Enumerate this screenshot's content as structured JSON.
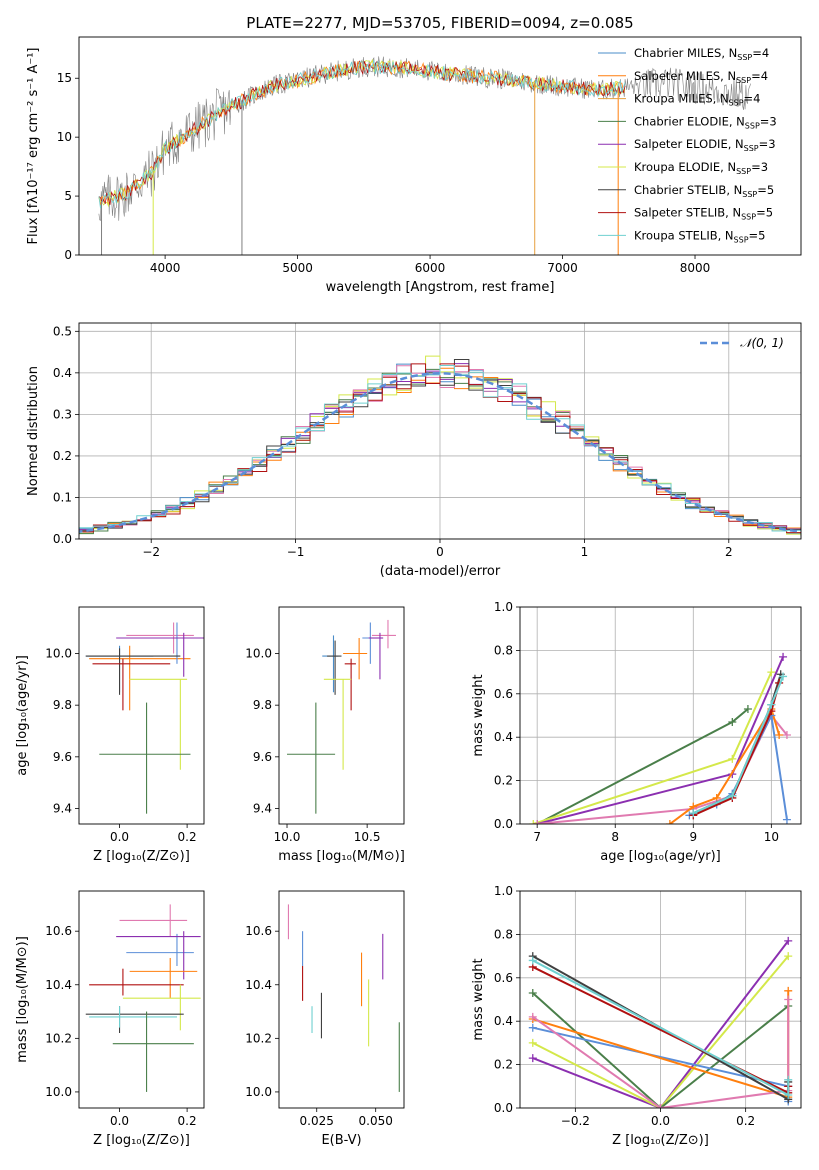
{
  "colors": {
    "chabrier_miles": "#4a8cc8",
    "salpeter_miles": "#ff7f0e",
    "kroupa_miles": "#e6a040",
    "chabrier_elodie": "#4a7f4a",
    "salpeter_elodie": "#8b2fb0",
    "kroupa_elodie": "#d4e84a",
    "chabrier_stelib": "#404040",
    "salpeter_stelib": "#b01010",
    "kroupa_stelib": "#6fd0d0",
    "pink": "#e07ab0",
    "blue2": "#5b8ed8",
    "grey_spec": "#808080",
    "gauss": "#5b8ed8"
  },
  "chart_data": [
    {
      "type": "line",
      "title": "PLATE=2277, MJD=53705, FIBERID=0094, z=0.085",
      "xlabel": "wavelength [Angstrom, rest frame]",
      "ylabel": "Flux [fλ10⁻¹⁷ erg cm⁻² s⁻¹ A⁻¹]",
      "xlim": [
        3350,
        8800
      ],
      "ylim": [
        0,
        18.5
      ],
      "xticks": [
        "4000",
        "5000",
        "6000",
        "7000",
        "8000"
      ],
      "yticks": [
        "0",
        "5",
        "10",
        "15"
      ],
      "legend_position": "top-right",
      "legend": [
        {
          "label": "Chabrier MILES, N",
          "sub": "SSP",
          "tail": "=4",
          "color": "chabrier_miles"
        },
        {
          "label": "Salpeter MILES, N",
          "sub": "SSP",
          "tail": "=4",
          "color": "salpeter_miles"
        },
        {
          "label": "Kroupa MILES, N",
          "sub": "SSP",
          "tail": "=4",
          "color": "kroupa_miles"
        },
        {
          "label": "Chabrier ELODIE, N",
          "sub": "SSP",
          "tail": "=3",
          "color": "chabrier_elodie"
        },
        {
          "label": "Salpeter ELODIE, N",
          "sub": "SSP",
          "tail": "=3",
          "color": "salpeter_elodie"
        },
        {
          "label": "Kroupa ELODIE, N",
          "sub": "SSP",
          "tail": "=3",
          "color": "kroupa_elodie"
        },
        {
          "label": "Chabrier STELIB, N",
          "sub": "SSP",
          "tail": "=5",
          "color": "chabrier_stelib"
        },
        {
          "label": "Salpeter STELIB, N",
          "sub": "SSP",
          "tail": "=5",
          "color": "salpeter_stelib"
        },
        {
          "label": "Kroupa STELIB, N",
          "sub": "SSP",
          "tail": "=5",
          "color": "kroupa_stelib"
        }
      ],
      "continuum": [
        [
          3500,
          4.5
        ],
        [
          3700,
          5.2
        ],
        [
          3900,
          7.0
        ],
        [
          4000,
          9.0
        ],
        [
          4200,
          10.5
        ],
        [
          4400,
          12.0
        ],
        [
          4600,
          13.2
        ],
        [
          4800,
          14.3
        ],
        [
          5000,
          14.8
        ],
        [
          5200,
          15.4
        ],
        [
          5500,
          16.0
        ],
        [
          5800,
          15.9
        ],
        [
          6000,
          15.6
        ],
        [
          6200,
          15.3
        ],
        [
          6500,
          15.0
        ],
        [
          6800,
          14.6
        ],
        [
          7000,
          14.3
        ],
        [
          7300,
          14.0
        ],
        [
          7600,
          14.4
        ],
        [
          7800,
          14.6
        ],
        [
          8000,
          14.2
        ],
        [
          8200,
          13.9
        ],
        [
          8400,
          13.5
        ]
      ],
      "spikes": [
        {
          "x": 4580,
          "y": 0,
          "color": "grey_spec"
        },
        {
          "x": 3520,
          "y": 0,
          "color": "grey_spec"
        },
        {
          "x": 3910,
          "y": 0,
          "color": "kroupa_elodie"
        },
        {
          "x": 6790,
          "y": 0,
          "color": "kroupa_miles"
        },
        {
          "x": 7420,
          "y": 0,
          "color": "salpeter_miles"
        }
      ]
    },
    {
      "type": "histogram",
      "xlabel": "(data-model)/error",
      "ylabel": "Normed distribution",
      "xlim": [
        -2.5,
        2.5
      ],
      "ylim": [
        0,
        0.52
      ],
      "xticks": [
        "−2",
        "−1",
        "0",
        "1",
        "2"
      ],
      "yticks": [
        "0.0",
        "0.1",
        "0.2",
        "0.3",
        "0.4",
        "0.5"
      ],
      "grid": true,
      "legend_position": "top-right",
      "gauss_label": "𝒩(0, 1)",
      "bin_width": 0.1,
      "series_colors": [
        "chabrier_miles",
        "salpeter_miles",
        "kroupa_elodie",
        "chabrier_elodie",
        "salpeter_elodie",
        "pink",
        "chabrier_stelib",
        "salpeter_stelib",
        "kroupa_stelib"
      ]
    },
    {
      "type": "scatter",
      "subtype": "errorbar",
      "xlabel": "Z [log₁₀(Z/Z⊙)]",
      "ylabel": "age  [log₁₀(age/yr)]",
      "xlim": [
        -0.12,
        0.25
      ],
      "ylim": [
        9.34,
        10.18
      ],
      "xticks": [
        "0.0",
        "0.2"
      ],
      "yticks": [
        "9.4",
        "9.6",
        "9.8",
        "10.0"
      ],
      "points": [
        {
          "x": 0.0,
          "y": 9.99,
          "xerr": [
            0.1,
            0.1
          ],
          "yerr": [
            0.14,
            0.04
          ],
          "color": "chabrier_miles"
        },
        {
          "x": 0.03,
          "y": 9.98,
          "xerr": [
            0.12,
            0.18
          ],
          "yerr": [
            0.2,
            0.05
          ],
          "color": "salpeter_miles"
        },
        {
          "x": 0.16,
          "y": 10.07,
          "xerr": [
            0.14,
            0.06
          ],
          "yerr": [
            0.07,
            0.05
          ],
          "color": "pink"
        },
        {
          "x": 0.17,
          "y": 10.06,
          "xerr": [
            0.11,
            0.06
          ],
          "yerr": [
            0.1,
            0.06
          ],
          "color": "blue2"
        },
        {
          "x": 0.19,
          "y": 10.06,
          "xerr": [
            0.2,
            0.06
          ],
          "yerr": [
            0.15,
            0.02
          ],
          "color": "salpeter_elodie"
        },
        {
          "x": 0.0,
          "y": 9.99,
          "xerr": [
            0.1,
            0.18
          ],
          "yerr": [
            0.15,
            0.03
          ],
          "color": "chabrier_stelib"
        },
        {
          "x": 0.01,
          "y": 9.96,
          "xerr": [
            0.09,
            0.14
          ],
          "yerr": [
            0.18,
            0.02
          ],
          "color": "salpeter_stelib"
        },
        {
          "x": 0.18,
          "y": 9.9,
          "xerr": [
            0.15,
            0.02
          ],
          "yerr": [
            0.35,
            0.0
          ],
          "color": "kroupa_elodie"
        },
        {
          "x": 0.08,
          "y": 9.61,
          "xerr": [
            0.14,
            0.13
          ],
          "yerr": [
            0.23,
            0.2
          ],
          "color": "chabrier_elodie"
        }
      ]
    },
    {
      "type": "scatter",
      "subtype": "errorbar",
      "xlabel": "mass [log₁₀(M/M⊙)]",
      "ylabel": "",
      "xlim": [
        9.95,
        10.73
      ],
      "ylim": [
        9.34,
        10.18
      ],
      "xticks": [
        "10.0",
        "10.5"
      ],
      "yticks": [
        "9.4",
        "9.6",
        "9.8",
        "10.0"
      ],
      "points": [
        {
          "x": 10.29,
          "y": 9.99,
          "xerr": [
            0.07,
            0.03
          ],
          "yerr": [
            0.14,
            0.08
          ],
          "color": "chabrier_miles"
        },
        {
          "x": 10.45,
          "y": 10.0,
          "xerr": [
            0.1,
            0.05
          ],
          "yerr": [
            0.1,
            0.06
          ],
          "color": "salpeter_miles"
        },
        {
          "x": 10.63,
          "y": 10.07,
          "xerr": [
            0.1,
            0.05
          ],
          "yerr": [
            0.05,
            0.06
          ],
          "color": "pink"
        },
        {
          "x": 10.52,
          "y": 10.06,
          "xerr": [
            0.05,
            0.05
          ],
          "yerr": [
            0.1,
            0.06
          ],
          "color": "blue2"
        },
        {
          "x": 10.58,
          "y": 10.06,
          "xerr": [
            0.07,
            0.02
          ],
          "yerr": [
            0.16,
            0.02
          ],
          "color": "salpeter_elodie"
        },
        {
          "x": 10.3,
          "y": 9.99,
          "xerr": [
            0.05,
            0.04
          ],
          "yerr": [
            0.15,
            0.06
          ],
          "color": "chabrier_stelib"
        },
        {
          "x": 10.4,
          "y": 9.96,
          "xerr": [
            0.04,
            0.03
          ],
          "yerr": [
            0.18,
            0.02
          ],
          "color": "salpeter_stelib"
        },
        {
          "x": 10.35,
          "y": 9.9,
          "xerr": [
            0.12,
            0.05
          ],
          "yerr": [
            0.35,
            0.0
          ],
          "color": "kroupa_elodie"
        },
        {
          "x": 10.18,
          "y": 9.61,
          "xerr": [
            0.18,
            0.12
          ],
          "yerr": [
            0.23,
            0.2
          ],
          "color": "chabrier_elodie"
        }
      ]
    },
    {
      "type": "line",
      "xlabel": "age  [log₁₀(age/yr)]",
      "ylabel": "mass weight",
      "xlim": [
        6.78,
        10.38
      ],
      "ylim": [
        0,
        1.0
      ],
      "xticks": [
        "7",
        "8",
        "9",
        "10"
      ],
      "yticks": [
        "0.0",
        "0.2",
        "0.4",
        "0.6",
        "0.8",
        "1.0"
      ],
      "grid": true,
      "series": [
        {
          "color": "chabrier_elodie",
          "x": [
            7.0,
            9.5,
            9.7
          ],
          "y": [
            0.0,
            0.47,
            0.53
          ]
        },
        {
          "color": "kroupa_elodie",
          "x": [
            6.95,
            9.5,
            10.0
          ],
          "y": [
            0.0,
            0.3,
            0.7
          ]
        },
        {
          "color": "salpeter_elodie",
          "x": [
            7.0,
            9.5,
            10.15
          ],
          "y": [
            0.0,
            0.23,
            0.77
          ]
        },
        {
          "color": "pink",
          "x": [
            7.0,
            9.0,
            9.5,
            10.0,
            10.2
          ],
          "y": [
            0.0,
            0.07,
            0.13,
            0.5,
            0.41
          ]
        },
        {
          "color": "salpeter_miles",
          "x": [
            8.7,
            9.0,
            9.3,
            10.0,
            10.1
          ],
          "y": [
            0.0,
            0.08,
            0.12,
            0.53,
            0.41
          ]
        },
        {
          "color": "blue2",
          "x": [
            8.95,
            9.3,
            9.5,
            10.0,
            10.2
          ],
          "y": [
            0.04,
            0.09,
            0.14,
            0.5,
            0.02
          ]
        },
        {
          "color": "chabrier_stelib",
          "x": [
            9.0,
            9.5,
            10.0,
            10.12
          ],
          "y": [
            0.05,
            0.13,
            0.55,
            0.69
          ]
        },
        {
          "color": "salpeter_stelib",
          "x": [
            9.0,
            9.5,
            10.0,
            10.1
          ],
          "y": [
            0.04,
            0.12,
            0.52,
            0.65
          ]
        },
        {
          "color": "kroupa_stelib",
          "x": [
            9.0,
            9.5,
            10.0,
            10.15
          ],
          "y": [
            0.05,
            0.13,
            0.55,
            0.68
          ]
        }
      ]
    },
    {
      "type": "scatter",
      "subtype": "errorbar",
      "xlabel": "Z [log₁₀(Z/Z⊙)]",
      "ylabel": "mass [log₁₀(M/M⊙)]",
      "xlim": [
        -0.12,
        0.25
      ],
      "ylim": [
        9.94,
        10.75
      ],
      "xticks": [
        "0.0",
        "0.2"
      ],
      "yticks": [
        "10.0",
        "10.2",
        "10.4",
        "10.6"
      ],
      "points": [
        {
          "x": 0.15,
          "y": 10.64,
          "xerr": [
            0.15,
            0.05
          ],
          "yerr": [
            0.06,
            0.06
          ],
          "color": "pink"
        },
        {
          "x": 0.17,
          "y": 10.52,
          "xerr": [
            0.15,
            0.05
          ],
          "yerr": [
            0.05,
            0.07
          ],
          "color": "blue2"
        },
        {
          "x": 0.19,
          "y": 10.58,
          "xerr": [
            0.2,
            0.05
          ],
          "yerr": [
            0.16,
            0.02
          ],
          "color": "salpeter_elodie"
        },
        {
          "x": 0.15,
          "y": 10.45,
          "xerr": [
            0.12,
            0.08
          ],
          "yerr": [
            0.1,
            0.05
          ],
          "color": "salpeter_miles"
        },
        {
          "x": 0.01,
          "y": 10.4,
          "xerr": [
            0.1,
            0.18
          ],
          "yerr": [
            0.04,
            0.06
          ],
          "color": "salpeter_stelib"
        },
        {
          "x": 0.18,
          "y": 10.35,
          "xerr": [
            0.17,
            0.06
          ],
          "yerr": [
            0.12,
            0.05
          ],
          "color": "kroupa_elodie"
        },
        {
          "x": 0.0,
          "y": 10.29,
          "xerr": [
            0.1,
            0.19
          ],
          "yerr": [
            0.07,
            0.03
          ],
          "color": "chabrier_stelib"
        },
        {
          "x": 0.0,
          "y": 10.28,
          "xerr": [
            0.09,
            0.17
          ],
          "yerr": [
            0.04,
            0.04
          ],
          "color": "kroupa_stelib"
        },
        {
          "x": 0.08,
          "y": 10.18,
          "xerr": [
            0.1,
            0.14
          ],
          "yerr": [
            0.18,
            0.12
          ],
          "color": "chabrier_elodie"
        }
      ]
    },
    {
      "type": "scatter",
      "subtype": "errorbar",
      "xlabel": "E(B-V)",
      "ylabel": "",
      "xlim": [
        0.009,
        0.062
      ],
      "ylim": [
        9.94,
        10.75
      ],
      "xticks": [
        "0.025",
        "0.050"
      ],
      "yticks": [
        "10.0",
        "10.2",
        "10.4",
        "10.6"
      ],
      "points": [
        {
          "x": 0.013,
          "y": 10.64,
          "yerr": [
            0.07,
            0.06
          ],
          "color": "pink"
        },
        {
          "x": 0.019,
          "y": 10.52,
          "yerr": [
            0.05,
            0.08
          ],
          "color": "blue2"
        },
        {
          "x": 0.019,
          "y": 10.4,
          "yerr": [
            0.06,
            0.07
          ],
          "color": "salpeter_stelib"
        },
        {
          "x": 0.023,
          "y": 10.28,
          "yerr": [
            0.06,
            0.04
          ],
          "color": "kroupa_stelib"
        },
        {
          "x": 0.027,
          "y": 10.29,
          "yerr": [
            0.09,
            0.08
          ],
          "color": "chabrier_stelib"
        },
        {
          "x": 0.044,
          "y": 10.45,
          "yerr": [
            0.13,
            0.07
          ],
          "color": "salpeter_miles"
        },
        {
          "x": 0.047,
          "y": 10.35,
          "yerr": [
            0.18,
            0.07
          ],
          "color": "kroupa_elodie"
        },
        {
          "x": 0.053,
          "y": 10.5,
          "yerr": [
            0.08,
            0.09
          ],
          "color": "salpeter_elodie"
        },
        {
          "x": 0.06,
          "y": 10.18,
          "yerr": [
            0.18,
            0.08
          ],
          "color": "chabrier_elodie"
        }
      ]
    },
    {
      "type": "line",
      "xlabel": "Z [log₁₀(Z/Z⊙)]",
      "ylabel": "mass weight",
      "xlim": [
        -0.33,
        0.33
      ],
      "ylim": [
        0,
        1.0
      ],
      "xticks": [
        "−0.2",
        "0.0",
        "0.2"
      ],
      "yticks": [
        "0.0",
        "0.2",
        "0.4",
        "0.6",
        "0.8",
        "1.0"
      ],
      "grid": true,
      "series": [
        {
          "color": "salpeter_elodie",
          "x": [
            -0.3,
            0.0,
            0.3
          ],
          "y": [
            0.23,
            0.0,
            0.77
          ]
        },
        {
          "color": "kroupa_elodie",
          "x": [
            -0.3,
            0.0,
            0.3
          ],
          "y": [
            0.3,
            0.0,
            0.7
          ]
        },
        {
          "color": "chabrier_elodie",
          "x": [
            -0.3,
            0.0,
            0.3
          ],
          "y": [
            0.53,
            0.0,
            0.47
          ]
        },
        {
          "color": "blue2",
          "x": [
            -0.3,
            0.3,
            0.3
          ],
          "y": [
            0.37,
            0.1,
            0.03
          ]
        },
        {
          "color": "salpeter_miles",
          "x": [
            -0.3,
            0.3,
            0.3
          ],
          "y": [
            0.41,
            0.05,
            0.54
          ]
        },
        {
          "color": "pink",
          "x": [
            -0.3,
            0.0,
            0.3,
            0.3
          ],
          "y": [
            0.42,
            0.0,
            0.08,
            0.5
          ]
        },
        {
          "color": "chabrier_stelib",
          "x": [
            -0.3,
            0.3,
            0.3
          ],
          "y": [
            0.7,
            0.04,
            0.12
          ]
        },
        {
          "color": "salpeter_stelib",
          "x": [
            -0.3,
            0.3,
            0.3
          ],
          "y": [
            0.65,
            0.07,
            0.1
          ]
        },
        {
          "color": "kroupa_stelib",
          "x": [
            -0.3,
            0.3,
            0.3
          ],
          "y": [
            0.68,
            0.06,
            0.13
          ]
        }
      ]
    }
  ]
}
